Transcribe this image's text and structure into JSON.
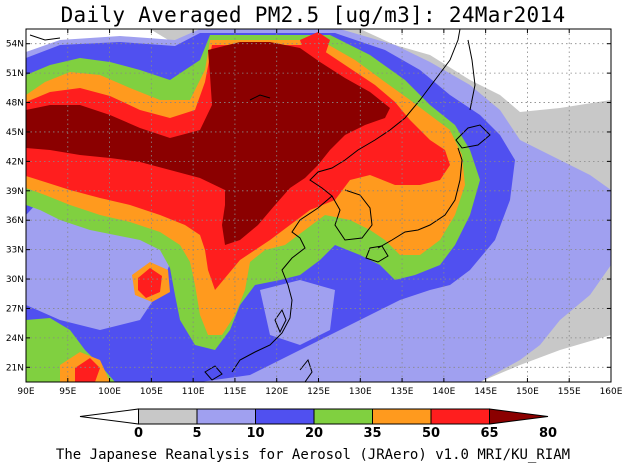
{
  "title": "Daily Averaged PM2.5 [ug/m3]: 24Mar2014",
  "footer": "The Japanese Reanalysis for Aerosol (JRAero) v1.0 MRI/KU_RIAM",
  "map": {
    "lon_range": [
      90,
      160
    ],
    "lat_range": [
      19.5,
      55.5
    ],
    "lon_ticks": [
      "90E",
      "95E",
      "100E",
      "105E",
      "110E",
      "115E",
      "120E",
      "125E",
      "130E",
      "135E",
      "140E",
      "145E",
      "150E",
      "155E",
      "160E"
    ],
    "lat_ticks": [
      "21N",
      "24N",
      "27N",
      "30N",
      "33N",
      "36N",
      "39N",
      "42N",
      "45N",
      "48N",
      "51N",
      "54N"
    ],
    "grid": true
  },
  "colorbar": {
    "labels": [
      "0",
      "5",
      "10",
      "20",
      "35",
      "50",
      "65",
      "80"
    ],
    "colors": [
      "#ffffff",
      "#c8c8c8",
      "#a0a0f0",
      "#5050f0",
      "#80d040",
      "#ff9a1e",
      "#ff1e1e",
      "#8b0000"
    ]
  },
  "colors": {
    "lowest": "#ffffff",
    "level_5": "#c8c8c8",
    "level_10": "#a0a0f0",
    "level_20": "#5050f0",
    "level_35": "#80d040",
    "level_50": "#ff9a1e",
    "level_65": "#ff1e1e",
    "level_80": "#8b0000"
  }
}
